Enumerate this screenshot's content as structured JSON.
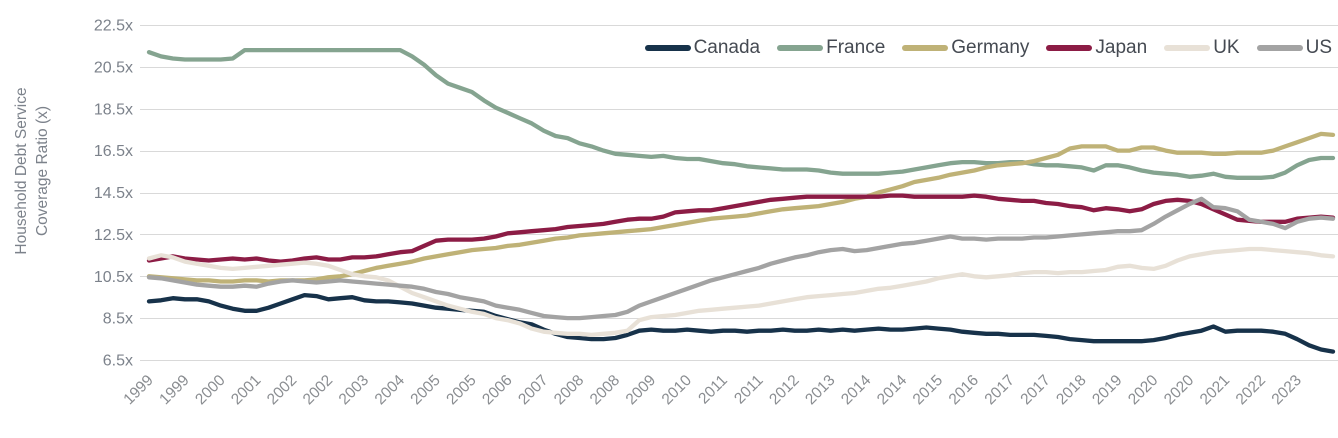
{
  "y_axis": {
    "title_line1": "Household Debt Service",
    "title_line2": "Coverage Ratio (x)"
  },
  "chart_data": {
    "type": "line",
    "title": "",
    "ylabel": "Household Debt Service Coverage Ratio (x)",
    "x_frequency": "quarterly",
    "x_range": [
      "1999Q1",
      "2023Q4"
    ],
    "points_per_series": 100,
    "x_tick_interval_points": 3,
    "x_tick_labels": [
      "1999",
      "1999",
      "2000",
      "2001",
      "2002",
      "2002",
      "2003",
      "2004",
      "2005",
      "2005",
      "2006",
      "2007",
      "2008",
      "2008",
      "2009",
      "2010",
      "2011",
      "2011",
      "2012",
      "2013",
      "2014",
      "2014",
      "2015",
      "2016",
      "2017",
      "2017",
      "2018",
      "2019",
      "2020",
      "2020",
      "2021",
      "2022",
      "2023"
    ],
    "ylim": [
      6.5,
      22.5
    ],
    "y_tick_step": 2,
    "y_tick_labels": [
      "22.5x",
      "20.5x",
      "18.5x",
      "16.5x",
      "14.5x",
      "12.5x",
      "10.5x",
      "8.5x",
      "6.5x"
    ],
    "y_tick_values": [
      22.5,
      20.5,
      18.5,
      16.5,
      14.5,
      12.5,
      10.5,
      8.5,
      6.5
    ],
    "grid": "horizontal",
    "gridline_color": "#d9d9d9",
    "legend_position": "top-right",
    "series": [
      {
        "name": "Canada",
        "color": "#17324a",
        "values": [
          9.3,
          9.35,
          9.45,
          9.4,
          9.4,
          9.3,
          9.1,
          8.95,
          8.85,
          8.85,
          9.0,
          9.2,
          9.4,
          9.6,
          9.55,
          9.4,
          9.45,
          9.5,
          9.35,
          9.3,
          9.3,
          9.25,
          9.2,
          9.1,
          9.0,
          8.95,
          8.9,
          8.85,
          8.8,
          8.6,
          8.45,
          8.3,
          8.2,
          7.95,
          7.75,
          7.6,
          7.55,
          7.5,
          7.5,
          7.55,
          7.7,
          7.9,
          7.95,
          7.9,
          7.9,
          7.95,
          7.9,
          7.85,
          7.9,
          7.9,
          7.85,
          7.9,
          7.9,
          7.95,
          7.9,
          7.9,
          7.95,
          7.9,
          7.95,
          7.9,
          7.95,
          8.0,
          7.95,
          7.95,
          8.0,
          8.05,
          8.0,
          7.95,
          7.85,
          7.8,
          7.75,
          7.75,
          7.7,
          7.7,
          7.7,
          7.65,
          7.6,
          7.5,
          7.45,
          7.4,
          7.4,
          7.4,
          7.4,
          7.4,
          7.45,
          7.55,
          7.7,
          7.8,
          7.9,
          8.1,
          7.85,
          7.9,
          7.9,
          7.9,
          7.85,
          7.75,
          7.5,
          7.2,
          7.0,
          6.9
        ]
      },
      {
        "name": "France",
        "color": "#85a490",
        "values": [
          21.2,
          21.0,
          20.9,
          20.85,
          20.85,
          20.85,
          20.85,
          20.9,
          21.3,
          21.3,
          21.3,
          21.3,
          21.3,
          21.3,
          21.3,
          21.3,
          21.3,
          21.3,
          21.3,
          21.3,
          21.3,
          21.3,
          21.0,
          20.6,
          20.1,
          19.7,
          19.5,
          19.3,
          18.9,
          18.55,
          18.3,
          18.05,
          17.8,
          17.45,
          17.2,
          17.1,
          16.85,
          16.7,
          16.5,
          16.35,
          16.3,
          16.25,
          16.2,
          16.25,
          16.15,
          16.1,
          16.1,
          16.0,
          15.9,
          15.85,
          15.75,
          15.7,
          15.65,
          15.6,
          15.6,
          15.6,
          15.55,
          15.45,
          15.4,
          15.4,
          15.4,
          15.4,
          15.45,
          15.5,
          15.6,
          15.7,
          15.8,
          15.9,
          15.95,
          15.95,
          15.9,
          15.9,
          15.95,
          15.95,
          15.85,
          15.8,
          15.8,
          15.75,
          15.7,
          15.55,
          15.8,
          15.8,
          15.7,
          15.55,
          15.45,
          15.4,
          15.35,
          15.25,
          15.3,
          15.4,
          15.25,
          15.2,
          15.2,
          15.2,
          15.25,
          15.45,
          15.8,
          16.05,
          16.15,
          16.15
        ]
      },
      {
        "name": "Germany",
        "color": "#bfb277",
        "values": [
          10.5,
          10.45,
          10.4,
          10.35,
          10.3,
          10.3,
          10.25,
          10.25,
          10.3,
          10.3,
          10.25,
          10.3,
          10.3,
          10.3,
          10.35,
          10.45,
          10.5,
          10.6,
          10.75,
          10.9,
          11.0,
          11.1,
          11.2,
          11.35,
          11.45,
          11.55,
          11.65,
          11.75,
          11.8,
          11.85,
          11.95,
          12.0,
          12.1,
          12.2,
          12.3,
          12.35,
          12.45,
          12.5,
          12.55,
          12.6,
          12.65,
          12.7,
          12.75,
          12.85,
          12.95,
          13.05,
          13.15,
          13.25,
          13.3,
          13.35,
          13.4,
          13.5,
          13.6,
          13.7,
          13.75,
          13.8,
          13.85,
          13.95,
          14.05,
          14.2,
          14.3,
          14.5,
          14.65,
          14.8,
          15.0,
          15.1,
          15.2,
          15.35,
          15.45,
          15.55,
          15.7,
          15.8,
          15.85,
          15.9,
          16.0,
          16.15,
          16.3,
          16.6,
          16.7,
          16.7,
          16.7,
          16.5,
          16.5,
          16.65,
          16.65,
          16.5,
          16.4,
          16.4,
          16.4,
          16.35,
          16.35,
          16.4,
          16.4,
          16.4,
          16.5,
          16.7,
          16.9,
          17.1,
          17.3,
          17.25
        ]
      },
      {
        "name": "Japan",
        "color": "#8c1c45",
        "values": [
          11.25,
          11.35,
          11.45,
          11.35,
          11.3,
          11.25,
          11.3,
          11.35,
          11.3,
          11.35,
          11.25,
          11.2,
          11.25,
          11.35,
          11.4,
          11.3,
          11.3,
          11.4,
          11.4,
          11.45,
          11.55,
          11.65,
          11.7,
          11.95,
          12.2,
          12.25,
          12.25,
          12.25,
          12.3,
          12.4,
          12.55,
          12.6,
          12.65,
          12.7,
          12.75,
          12.85,
          12.9,
          12.95,
          13.0,
          13.1,
          13.2,
          13.25,
          13.25,
          13.35,
          13.55,
          13.6,
          13.65,
          13.65,
          13.75,
          13.85,
          13.95,
          14.05,
          14.15,
          14.2,
          14.25,
          14.3,
          14.3,
          14.3,
          14.3,
          14.3,
          14.3,
          14.3,
          14.35,
          14.35,
          14.3,
          14.3,
          14.3,
          14.3,
          14.3,
          14.35,
          14.3,
          14.2,
          14.15,
          14.1,
          14.1,
          14.0,
          13.95,
          13.85,
          13.8,
          13.65,
          13.75,
          13.7,
          13.6,
          13.7,
          13.95,
          14.1,
          14.15,
          14.1,
          13.95,
          13.7,
          13.45,
          13.2,
          13.15,
          13.1,
          13.1,
          13.1,
          13.25,
          13.3,
          13.35,
          13.3
        ]
      },
      {
        "name": "UK",
        "color": "#e8e1d7",
        "values": [
          11.35,
          11.5,
          11.4,
          11.2,
          11.1,
          11.0,
          10.9,
          10.85,
          10.9,
          10.95,
          11.0,
          11.05,
          11.1,
          11.15,
          11.1,
          11.0,
          10.8,
          10.6,
          10.5,
          10.45,
          10.3,
          10.0,
          9.7,
          9.5,
          9.3,
          9.1,
          8.95,
          8.8,
          8.7,
          8.5,
          8.4,
          8.25,
          8.0,
          7.85,
          7.8,
          7.75,
          7.75,
          7.7,
          7.75,
          7.8,
          7.9,
          8.4,
          8.55,
          8.6,
          8.65,
          8.75,
          8.85,
          8.9,
          8.95,
          9.0,
          9.05,
          9.1,
          9.2,
          9.3,
          9.4,
          9.5,
          9.55,
          9.6,
          9.65,
          9.7,
          9.8,
          9.9,
          9.95,
          10.05,
          10.15,
          10.25,
          10.4,
          10.5,
          10.6,
          10.5,
          10.45,
          10.5,
          10.55,
          10.65,
          10.7,
          10.7,
          10.65,
          10.7,
          10.7,
          10.75,
          10.8,
          10.95,
          11.0,
          10.9,
          10.85,
          11.0,
          11.25,
          11.45,
          11.55,
          11.65,
          11.7,
          11.75,
          11.8,
          11.8,
          11.75,
          11.7,
          11.65,
          11.6,
          11.5,
          11.45
        ]
      },
      {
        "name": "US",
        "color": "#a3a3a3",
        "values": [
          10.45,
          10.4,
          10.3,
          10.2,
          10.1,
          10.05,
          10.0,
          10.0,
          10.05,
          10.0,
          10.15,
          10.25,
          10.3,
          10.25,
          10.2,
          10.25,
          10.3,
          10.25,
          10.2,
          10.15,
          10.1,
          10.05,
          10.0,
          9.9,
          9.75,
          9.65,
          9.5,
          9.4,
          9.3,
          9.1,
          9.0,
          8.9,
          8.75,
          8.6,
          8.55,
          8.5,
          8.5,
          8.55,
          8.6,
          8.65,
          8.8,
          9.1,
          9.3,
          9.5,
          9.7,
          9.9,
          10.1,
          10.3,
          10.45,
          10.6,
          10.75,
          10.9,
          11.1,
          11.25,
          11.4,
          11.5,
          11.65,
          11.75,
          11.8,
          11.7,
          11.75,
          11.85,
          11.95,
          12.05,
          12.1,
          12.2,
          12.3,
          12.4,
          12.3,
          12.3,
          12.25,
          12.3,
          12.3,
          12.3,
          12.35,
          12.35,
          12.4,
          12.45,
          12.5,
          12.55,
          12.6,
          12.65,
          12.65,
          12.7,
          13.0,
          13.35,
          13.65,
          13.95,
          14.2,
          13.8,
          13.75,
          13.6,
          13.2,
          13.1,
          13.0,
          12.8,
          13.1,
          13.25,
          13.3,
          13.25
        ]
      }
    ]
  }
}
